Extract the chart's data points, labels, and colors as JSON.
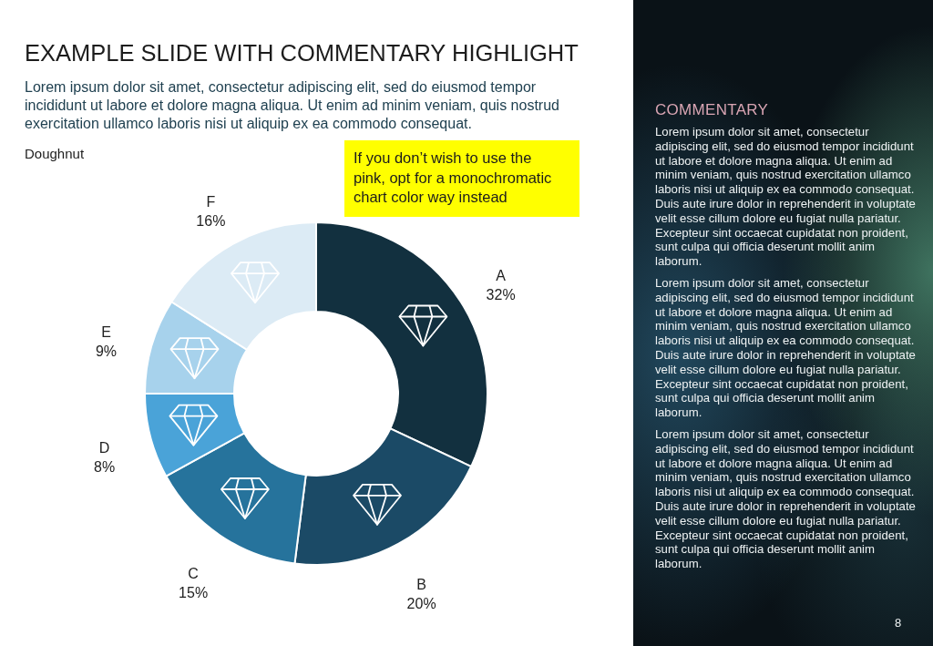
{
  "chart_data": {
    "type": "donut",
    "title": "EXAMPLE SLIDE WITH COMMENTARY HIGHLIGHT",
    "subtitle": "Lorem ipsum dolor sit amet, consectetur adipiscing elit, sed do eiusmod tempor incididunt ut labore et dolore magna aliqua. Ut enim ad minim veniam, quis nostrud exercitation ullamco laboris nisi ut aliquip ex ea commodo consequat.",
    "categories": [
      "A",
      "B",
      "C",
      "D",
      "E",
      "F"
    ],
    "values": [
      32,
      20,
      15,
      8,
      9,
      16
    ],
    "colors": [
      "#12303f",
      "#1b4a66",
      "#26739c",
      "#4aa3d8",
      "#a7d2ec",
      "#dcebf5"
    ],
    "value_labels": [
      "32%",
      "20%",
      "15%",
      "8%",
      "9%",
      "16%"
    ],
    "annotations": [
      "Doughnut",
      "If you don’t wish to use the pink, opt for a monochromatic chart color way instead",
      "COMMENTARY",
      "Lorem ipsum dolor sit amet, consectetur adipiscing elit, sed do eiusmod tempor incididunt ut labore et dolore magna aliqua. Ut enim ad minim veniam, quis nostrud exercitation ullamco laboris nisi ut aliquip ex ea commodo consequat. Duis aute irure dolor in reprehenderit in voluptate velit esse cillum dolore eu fugiat nulla pariatur. Excepteur sint occaecat cupidatat non proident, sunt culpa qui officia deserunt mollit anim laborum.",
      "Lorem ipsum dolor sit amet, consectetur adipiscing elit, sed do eiusmod tempor incididunt ut labore et dolore magna aliqua. Ut enim ad minim veniam, quis nostrud exercitation ullamco laboris nisi ut aliquip ex ea commodo consequat. Duis aute irure dolor in reprehenderit in voluptate velit esse cillum dolore eu fugiat nulla pariatur. Excepteur sint occaecat cupidatat non proident, sunt culpa qui officia deserunt mollit anim laborum.",
      "Lorem ipsum dolor sit amet, consectetur adipiscing elit, sed do eiusmod tempor incididunt ut labore et dolore magna aliqua. Ut enim ad minim veniam, quis nostrud exercitation ullamco laboris nisi ut aliquip ex ea commodo consequat. Duis aute irure dolor in reprehenderit in voluptate velit esse cillum dolore eu fugiat nulla pariatur. Excepteur sint occaecat cupidatat non proident, sunt culpa qui officia deserunt mollit anim laborum.",
      "8"
    ]
  }
}
